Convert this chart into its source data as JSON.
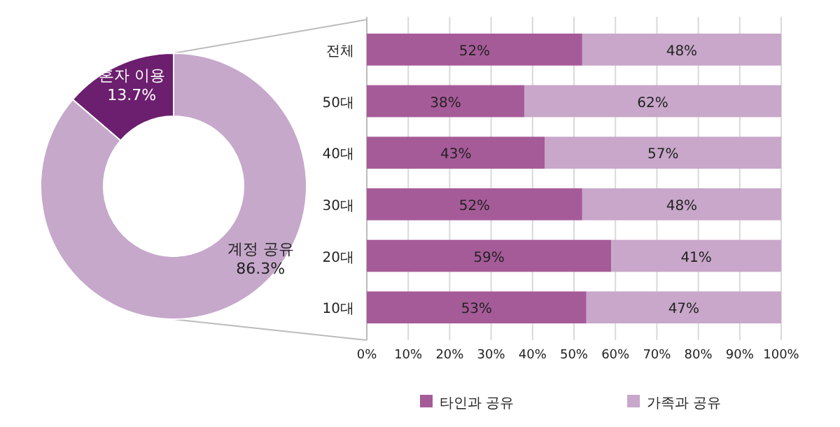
{
  "chart_data": [
    {
      "type": "donut",
      "categories": [
        "혼자 이용",
        "계정 공유"
      ],
      "values": [
        13.7,
        86.3
      ],
      "colors": [
        "#6c1f6e",
        "#c6a8cb"
      ],
      "value_labels": [
        "13.7%",
        "86.3%"
      ]
    },
    {
      "type": "bar",
      "orientation": "horizontal",
      "stacked": true,
      "categories": [
        "전체",
        "50대",
        "40대",
        "30대",
        "20대",
        "10대"
      ],
      "series": [
        {
          "name": "타인과 공유",
          "color": "#a65b99",
          "values": [
            52,
            38,
            43,
            52,
            59,
            53
          ],
          "value_labels": [
            "52%",
            "38%",
            "43%",
            "52%",
            "59%",
            "53%"
          ]
        },
        {
          "name": "가족과 공유",
          "color": "#c8a7ca",
          "values": [
            48,
            62,
            57,
            48,
            41,
            47
          ],
          "value_labels": [
            "48%",
            "62%",
            "57%",
            "48%",
            "41%",
            "47%"
          ]
        }
      ],
      "xlim": [
        0,
        100
      ],
      "xticks": [
        {
          "value": 0,
          "label": "0%"
        },
        {
          "value": 10,
          "label": "10%"
        },
        {
          "value": 20,
          "label": "20%"
        },
        {
          "value": 30,
          "label": "30%"
        },
        {
          "value": 40,
          "label": "40%"
        },
        {
          "value": 50,
          "label": "50%"
        },
        {
          "value": 60,
          "label": "60%"
        },
        {
          "value": 70,
          "label": "70%"
        },
        {
          "value": 80,
          "label": "80%"
        },
        {
          "value": 90,
          "label": "90%"
        },
        {
          "value": 100,
          "label": "100%"
        }
      ],
      "grid": "x",
      "legend": "bottom"
    }
  ]
}
